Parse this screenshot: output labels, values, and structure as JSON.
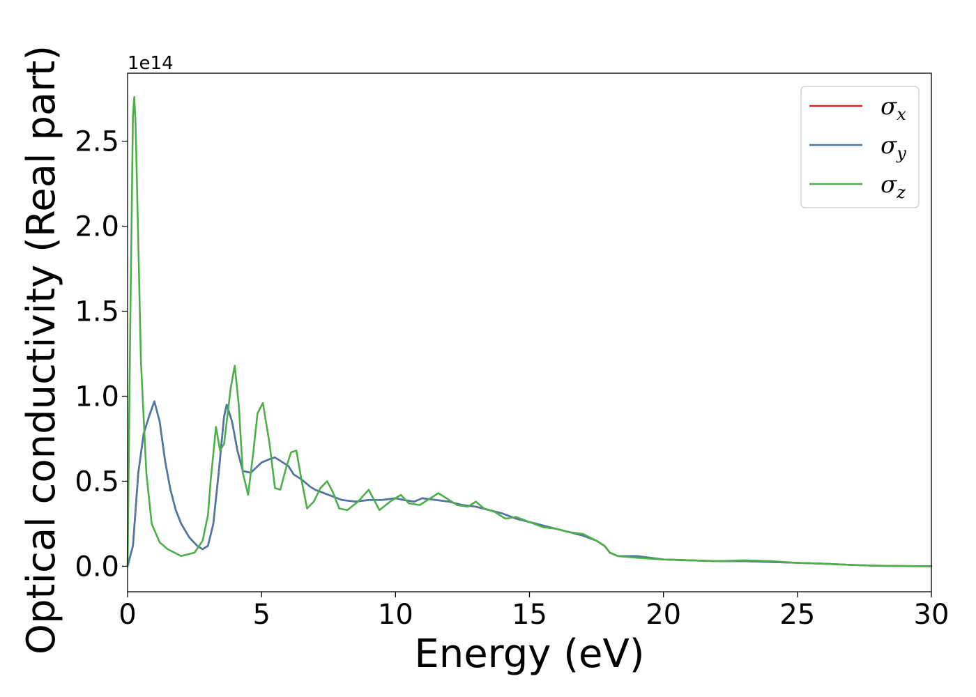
{
  "chart_data": {
    "type": "line",
    "title": "",
    "xlabel": "Energy (eV)",
    "ylabel": "Optical conductivity (Real part)",
    "y_offset_text": "1e14",
    "y_scale": 100000000000000.0,
    "xlim": [
      0,
      30
    ],
    "ylim": [
      -0.15,
      2.9
    ],
    "xticks": [
      0,
      5,
      10,
      15,
      20,
      25,
      30
    ],
    "xtick_labels": [
      "0",
      "5",
      "10",
      "15",
      "20",
      "25",
      "30"
    ],
    "yticks": [
      0.0,
      0.5,
      1.0,
      1.5,
      2.0,
      2.5
    ],
    "ytick_labels": [
      "0.0",
      "0.5",
      "1.0",
      "1.5",
      "2.0",
      "2.5"
    ],
    "grid": false,
    "legend_position": "top-right",
    "series": [
      {
        "name": "σx",
        "symbol": "σ",
        "subscript": "x",
        "color": "#d62728",
        "x": [
          0,
          0.2,
          0.4,
          0.6,
          0.8,
          1.0,
          1.2,
          1.4,
          1.6,
          1.8,
          2.0,
          2.3,
          2.6,
          2.8,
          3.0,
          3.2,
          3.4,
          3.6,
          3.7,
          3.9,
          4.1,
          4.3,
          4.6,
          5.0,
          5.3,
          5.5,
          5.7,
          6.0,
          6.2,
          6.5,
          6.8,
          7.0,
          7.5,
          8.0,
          8.5,
          9.0,
          9.5,
          10.0,
          10.3,
          10.7,
          11.0,
          11.5,
          12.0,
          12.5,
          13.0,
          13.5,
          14.0,
          14.5,
          15.0,
          15.5,
          16.0,
          16.5,
          17.0,
          17.5,
          17.8,
          18.0,
          18.3,
          19.0,
          20.0,
          21.0,
          22.0,
          23.0,
          24.0,
          25.0,
          26.0,
          27.0,
          28.0,
          29.0,
          30.0
        ],
        "values": [
          0.0,
          0.12,
          0.55,
          0.78,
          0.88,
          0.97,
          0.85,
          0.62,
          0.45,
          0.33,
          0.25,
          0.17,
          0.12,
          0.1,
          0.12,
          0.25,
          0.55,
          0.88,
          0.95,
          0.85,
          0.68,
          0.56,
          0.55,
          0.61,
          0.63,
          0.64,
          0.62,
          0.59,
          0.54,
          0.51,
          0.47,
          0.45,
          0.42,
          0.39,
          0.38,
          0.39,
          0.39,
          0.4,
          0.39,
          0.38,
          0.4,
          0.39,
          0.38,
          0.36,
          0.35,
          0.33,
          0.31,
          0.28,
          0.26,
          0.24,
          0.22,
          0.2,
          0.18,
          0.15,
          0.12,
          0.08,
          0.06,
          0.06,
          0.04,
          0.035,
          0.03,
          0.03,
          0.025,
          0.02,
          0.015,
          0.008,
          0.003,
          0.001,
          0.0
        ]
      },
      {
        "name": "σy",
        "symbol": "σ",
        "subscript": "y",
        "color": "#4c78a8",
        "x": [
          0,
          0.2,
          0.4,
          0.6,
          0.8,
          1.0,
          1.2,
          1.4,
          1.6,
          1.8,
          2.0,
          2.3,
          2.6,
          2.8,
          3.0,
          3.2,
          3.4,
          3.6,
          3.7,
          3.9,
          4.1,
          4.3,
          4.6,
          5.0,
          5.3,
          5.5,
          5.7,
          6.0,
          6.2,
          6.5,
          6.8,
          7.0,
          7.5,
          8.0,
          8.5,
          9.0,
          9.5,
          10.0,
          10.3,
          10.7,
          11.0,
          11.5,
          12.0,
          12.5,
          13.0,
          13.5,
          14.0,
          14.5,
          15.0,
          15.5,
          16.0,
          16.5,
          17.0,
          17.5,
          17.8,
          18.0,
          18.3,
          19.0,
          20.0,
          21.0,
          22.0,
          23.0,
          24.0,
          25.0,
          26.0,
          27.0,
          28.0,
          29.0,
          30.0
        ],
        "values": [
          0.0,
          0.12,
          0.55,
          0.78,
          0.88,
          0.97,
          0.85,
          0.62,
          0.45,
          0.33,
          0.25,
          0.17,
          0.12,
          0.1,
          0.12,
          0.25,
          0.55,
          0.88,
          0.95,
          0.85,
          0.68,
          0.56,
          0.55,
          0.61,
          0.63,
          0.64,
          0.62,
          0.59,
          0.54,
          0.51,
          0.47,
          0.45,
          0.42,
          0.39,
          0.38,
          0.39,
          0.39,
          0.4,
          0.39,
          0.38,
          0.4,
          0.39,
          0.38,
          0.36,
          0.35,
          0.33,
          0.31,
          0.28,
          0.26,
          0.24,
          0.22,
          0.2,
          0.18,
          0.15,
          0.12,
          0.08,
          0.06,
          0.06,
          0.04,
          0.035,
          0.03,
          0.03,
          0.025,
          0.02,
          0.015,
          0.008,
          0.003,
          0.001,
          0.0
        ]
      },
      {
        "name": "σz",
        "symbol": "σ",
        "subscript": "z",
        "color": "#4daf4a",
        "x": [
          0,
          0.1,
          0.2,
          0.25,
          0.3,
          0.4,
          0.5,
          0.7,
          0.9,
          1.2,
          1.5,
          2.0,
          2.5,
          2.8,
          3.0,
          3.1,
          3.3,
          3.45,
          3.6,
          3.7,
          3.85,
          4.0,
          4.15,
          4.3,
          4.5,
          4.7,
          4.85,
          5.05,
          5.3,
          5.5,
          5.7,
          5.9,
          6.1,
          6.3,
          6.5,
          6.7,
          6.95,
          7.2,
          7.45,
          7.65,
          7.9,
          8.2,
          8.6,
          9.0,
          9.4,
          9.8,
          10.2,
          10.5,
          10.9,
          11.3,
          11.6,
          11.9,
          12.3,
          12.7,
          13.0,
          13.3,
          13.7,
          14.1,
          14.5,
          15.0,
          15.5,
          16.0,
          16.5,
          17.0,
          17.5,
          17.8,
          18.0,
          18.3,
          19.0,
          20.0,
          21.0,
          22.0,
          23.0,
          24.0,
          25.0,
          26.0,
          27.0,
          28.0,
          29.0,
          30.0
        ],
        "values": [
          0.0,
          1.4,
          2.65,
          2.76,
          2.6,
          1.9,
          1.2,
          0.55,
          0.25,
          0.14,
          0.1,
          0.06,
          0.08,
          0.15,
          0.3,
          0.5,
          0.82,
          0.68,
          0.72,
          0.85,
          1.05,
          1.18,
          0.95,
          0.55,
          0.42,
          0.68,
          0.9,
          0.96,
          0.72,
          0.46,
          0.45,
          0.57,
          0.67,
          0.68,
          0.5,
          0.34,
          0.38,
          0.46,
          0.5,
          0.44,
          0.34,
          0.33,
          0.38,
          0.45,
          0.33,
          0.38,
          0.42,
          0.37,
          0.36,
          0.4,
          0.43,
          0.4,
          0.36,
          0.35,
          0.38,
          0.34,
          0.32,
          0.28,
          0.29,
          0.26,
          0.23,
          0.22,
          0.2,
          0.19,
          0.15,
          0.12,
          0.08,
          0.06,
          0.05,
          0.04,
          0.035,
          0.03,
          0.035,
          0.03,
          0.02,
          0.015,
          0.008,
          0.003,
          0.001,
          0.0
        ]
      }
    ]
  }
}
